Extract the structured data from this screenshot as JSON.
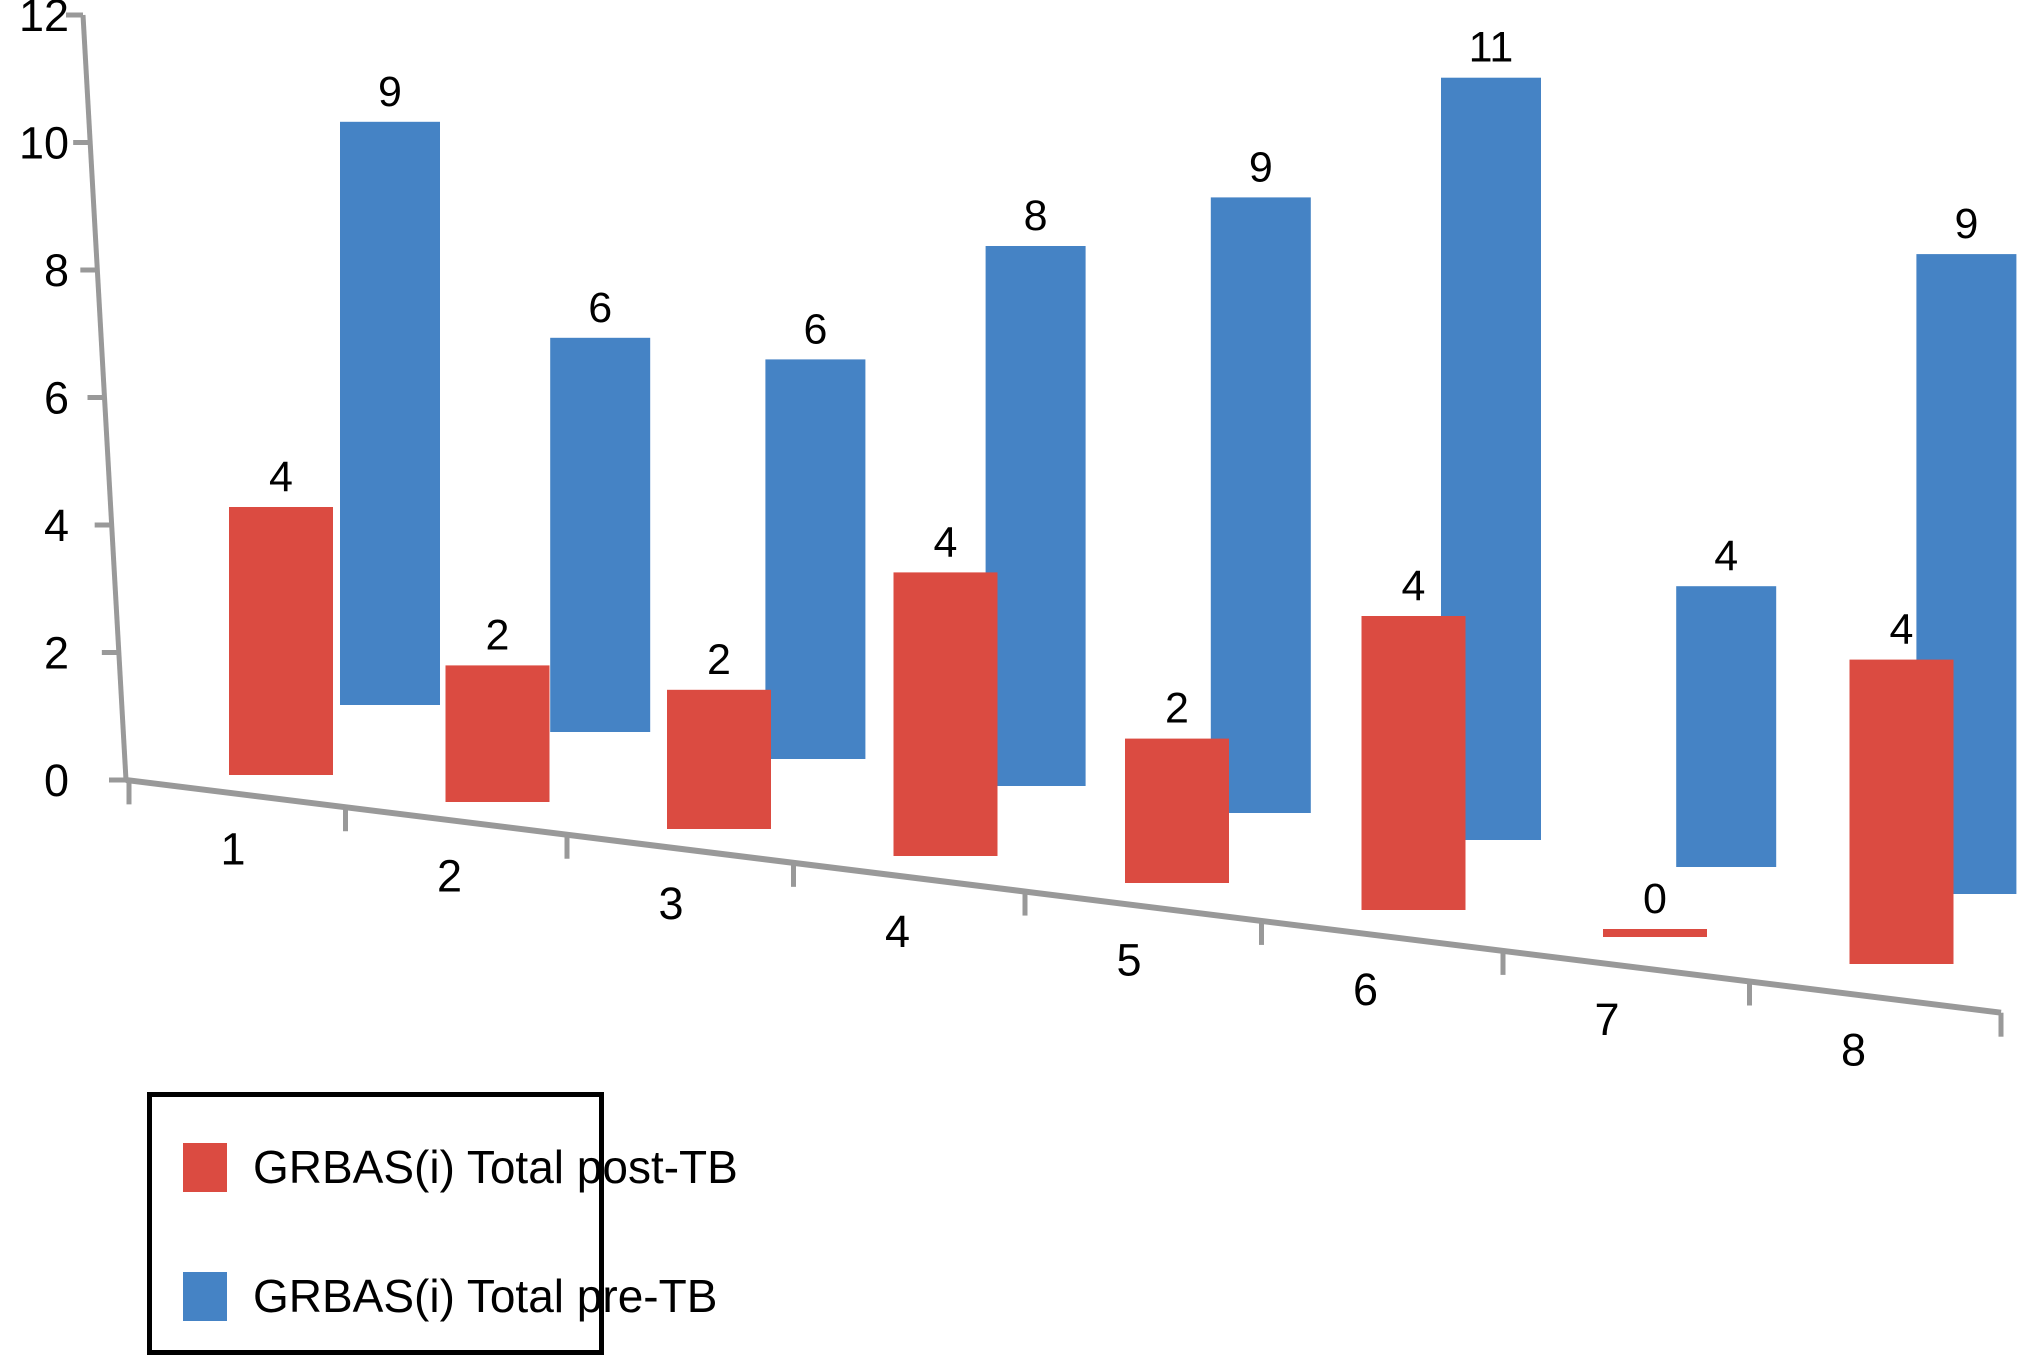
{
  "chart_data": {
    "type": "bar",
    "style": "3d-perspective-clustered",
    "title": "",
    "xlabel": "",
    "ylabel": "",
    "categories": [
      "1",
      "2",
      "3",
      "4",
      "5",
      "6",
      "7",
      "8"
    ],
    "series": [
      {
        "name": "GRBAS(i) Total post-TB",
        "role": "front-row",
        "color": "#DB4B41",
        "values": [
          4,
          2,
          2,
          4,
          2,
          4,
          0,
          4
        ]
      },
      {
        "name": "GRBAS(i) Total pre-TB",
        "role": "back-row",
        "color": "#4583C5",
        "values": [
          9,
          6,
          6,
          8,
          9,
          11,
          4,
          9
        ]
      }
    ],
    "value_axis": {
      "min": 0,
      "max": 12,
      "step": 2,
      "tick_labels": [
        "0",
        "2",
        "4",
        "6",
        "8",
        "10",
        "12"
      ]
    },
    "data_labels": true,
    "grid": false,
    "legend_position": "bottom-left",
    "axis_color": "#999999",
    "text_color": "#000000",
    "background_color": "#FFFFFF"
  },
  "legend": {
    "items": [
      {
        "label": "GRBAS(i) Total post-TB",
        "color": "#DB4B41"
      },
      {
        "label": "GRBAS(i) Total pre-TB",
        "color": "#4583C5"
      }
    ]
  }
}
